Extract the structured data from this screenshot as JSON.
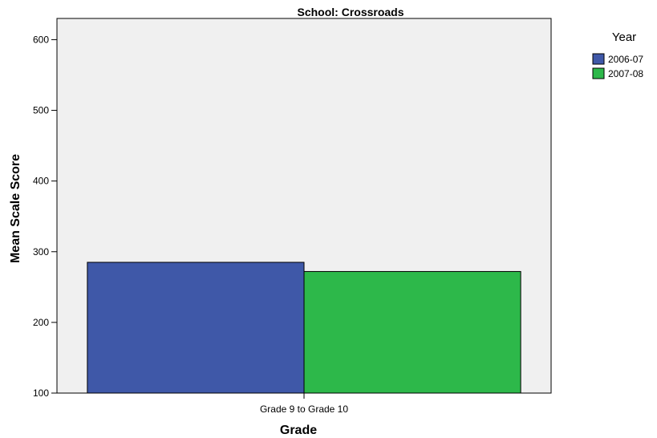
{
  "chart_data": {
    "type": "bar",
    "title": "School: Crossroads",
    "xlabel": "Grade",
    "ylabel": "Mean Scale Score",
    "categories": [
      "Grade 9 to Grade 10"
    ],
    "series": [
      {
        "name": "2006-07",
        "values": [
          285
        ],
        "color": "#3f58a8"
      },
      {
        "name": "2007-08",
        "values": [
          272
        ],
        "color": "#2db84a"
      }
    ],
    "ylim": [
      100,
      630
    ],
    "yticks": [
      100,
      200,
      300,
      400,
      500,
      600
    ],
    "legend": {
      "title": "Year",
      "placement": "right"
    },
    "grid": false,
    "plot_background": "#f0f0f0"
  }
}
